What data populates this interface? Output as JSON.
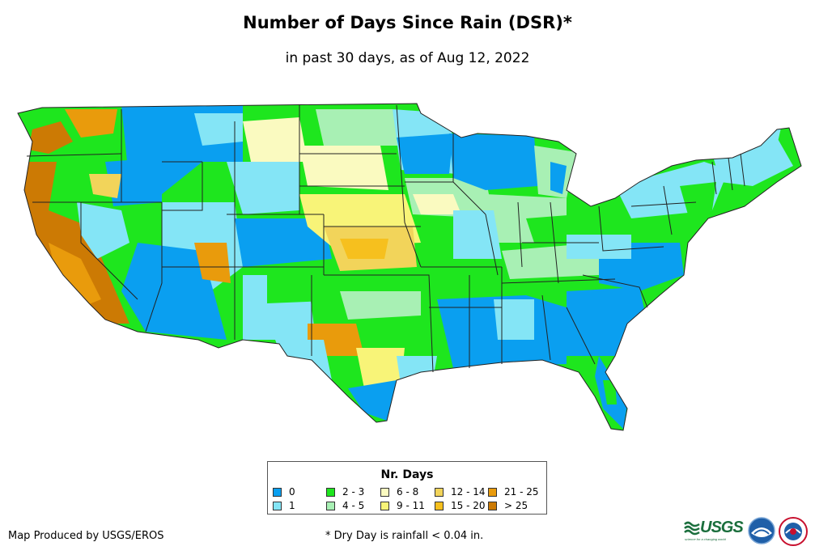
{
  "title": "Number of Days Since Rain (DSR)*",
  "subtitle": "in past 30 days, as of Aug 12, 2022",
  "legend": {
    "title": "Nr. Days",
    "items": [
      {
        "label": "0",
        "color": "#0a9ff0"
      },
      {
        "label": "1",
        "color": "#84e5f6"
      },
      {
        "label": "2 - 3",
        "color": "#1ee61e"
      },
      {
        "label": "4 - 5",
        "color": "#a8f0b4"
      },
      {
        "label": "6 - 8",
        "color": "#fafac0"
      },
      {
        "label": "9 - 11",
        "color": "#f8f478"
      },
      {
        "label": "12 - 14",
        "color": "#f2d45a"
      },
      {
        "label": "15 - 20",
        "color": "#f6c01e"
      },
      {
        "label": "21 - 25",
        "color": "#e99b0c"
      },
      {
        "label": "> 25",
        "color": "#cc7a04"
      }
    ]
  },
  "footer": {
    "producer": "Map Produced by USGS/EROS",
    "note": "* Dry Day is rainfall < 0.04 in."
  },
  "logos": {
    "usgs_text": "USGS",
    "usgs_tagline": "science for a changing world",
    "noaa": "noaa-logo",
    "nws": "nws-logo"
  }
}
